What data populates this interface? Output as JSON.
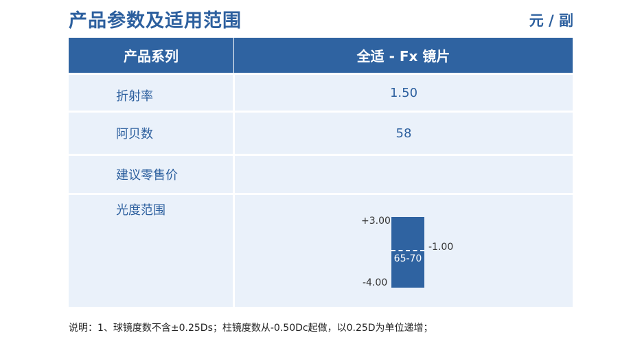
{
  "title": "产品参数及适用范围",
  "unit": "元 / 副",
  "table": {
    "header": {
      "col1": "产品系列",
      "col2": "全适 - Fx 镜片"
    },
    "rows": [
      {
        "label": "折射率",
        "value": "1.50"
      },
      {
        "label": "阿贝数",
        "value": "58"
      },
      {
        "label": "建议零售价",
        "value": ""
      },
      {
        "label": "光度范围"
      }
    ]
  },
  "power_range": {
    "top_label": "+3.00",
    "bottom_label": "-4.00",
    "divider_label": "-1.00",
    "center_label": "65-70"
  },
  "note": "说明：1、球镜度数不含±0.25Ds；柱镜度数从-0.50Dc起做，以0.25D为单位递增；",
  "colors": {
    "primary": "#2f63a1",
    "row_bg": "#eaf1fa"
  }
}
